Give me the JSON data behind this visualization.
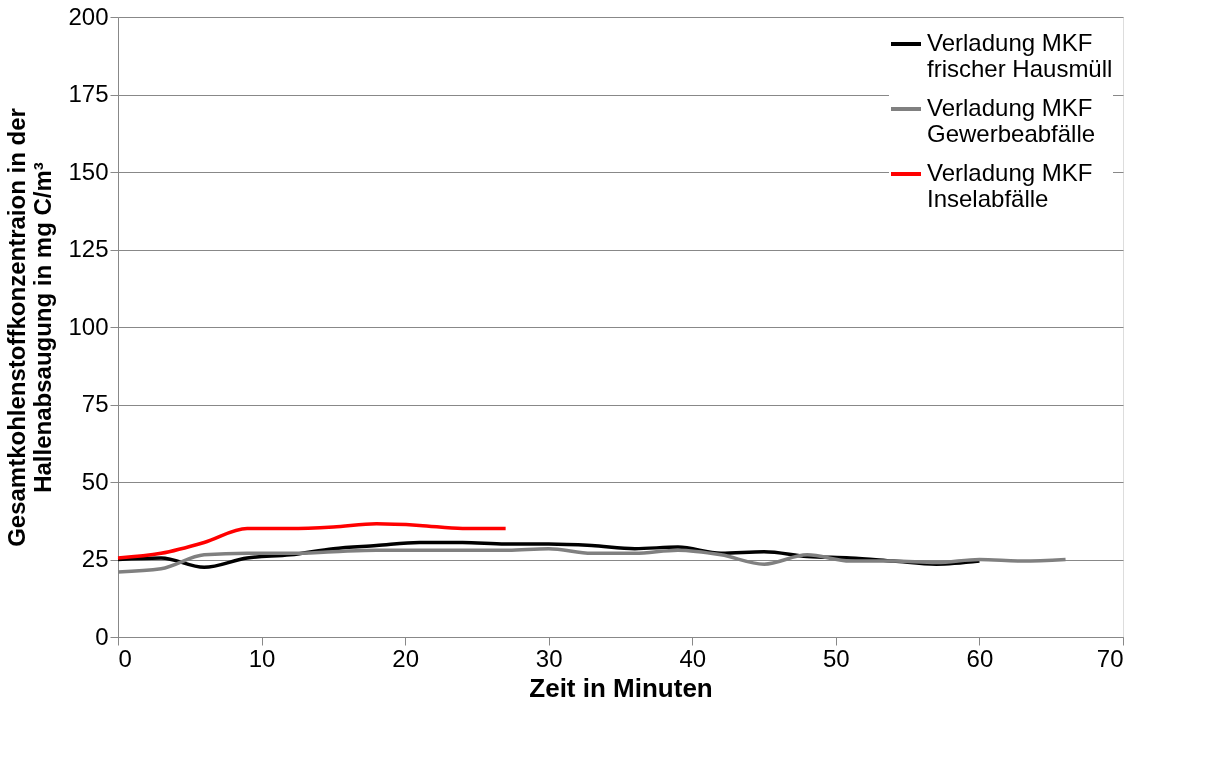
{
  "chart_data": {
    "type": "line",
    "xlabel": "Zeit in Minuten",
    "ylabel": "Gesamtkohlenstoffkonzentraion in der\nHallenabsaugung in mg C/m³",
    "xlim": [
      0,
      70
    ],
    "xticks": [
      0,
      10,
      20,
      30,
      40,
      50,
      60,
      70
    ],
    "ylim": [
      0,
      200
    ],
    "yticks": [
      0,
      25,
      50,
      75,
      100,
      125,
      150,
      175,
      200
    ],
    "grid": "y",
    "legend": "top right",
    "line_style": "solid",
    "marker": "none",
    "series": [
      {
        "name": "Verladung MKF\nfrischer Hausmüll",
        "color": "#000000",
        "x": [
          0,
          3,
          6,
          9,
          12,
          15,
          18,
          21,
          24,
          27,
          30,
          33,
          36,
          39,
          42,
          45,
          48,
          51,
          54,
          57,
          60
        ],
        "values": [
          25,
          25.5,
          22.5,
          25.5,
          26.5,
          28.5,
          29.5,
          30.5,
          30.5,
          30,
          30,
          29.5,
          28.5,
          29,
          27,
          27.5,
          26,
          25.5,
          24.5,
          23.5,
          24.5
        ]
      },
      {
        "name": "Verladung MKF\nGewerbeabfälle",
        "color": "#808080",
        "x": [
          0,
          3,
          6,
          9,
          12,
          15,
          18,
          21,
          24,
          27,
          30,
          33,
          36,
          39,
          42,
          45,
          48,
          51,
          54,
          57,
          60,
          63,
          66
        ],
        "values": [
          21,
          22,
          26.5,
          27,
          27,
          27.5,
          28,
          28,
          28,
          28,
          28.5,
          27,
          27,
          28,
          26.5,
          23.5,
          26.5,
          24.5,
          24.5,
          24,
          25,
          24.5,
          25
        ]
      },
      {
        "name": "Verladung MKF\nInselabfälle",
        "color": "#ff0000",
        "x": [
          0,
          3,
          6,
          9,
          12,
          15,
          18,
          21,
          24,
          27
        ],
        "values": [
          25.5,
          27,
          30.5,
          35,
          35,
          35.5,
          36.5,
          36,
          35,
          35
        ]
      }
    ]
  }
}
